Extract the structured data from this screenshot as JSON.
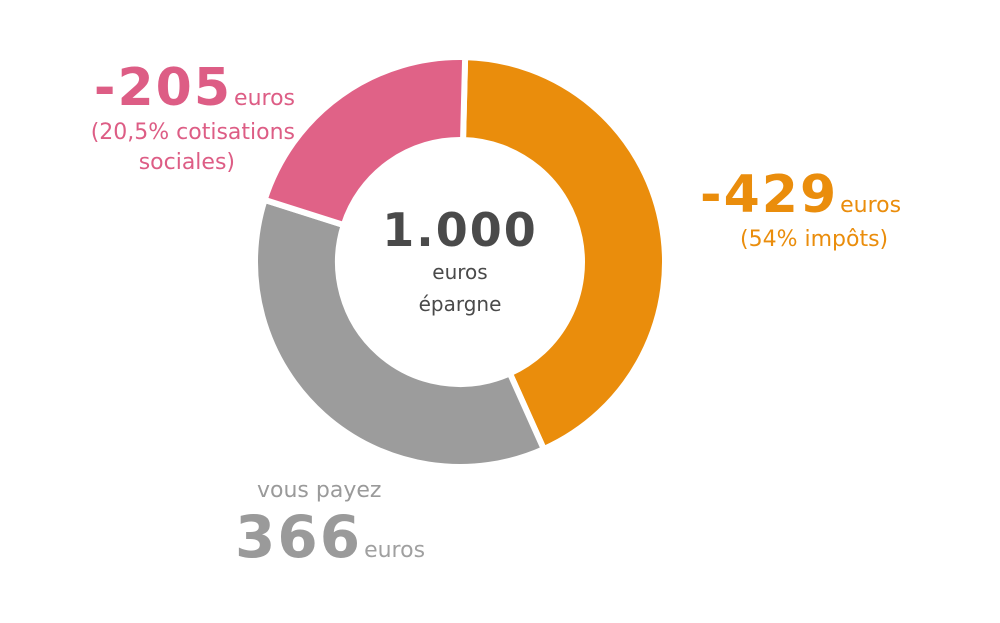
{
  "chart_data": {
    "type": "pie",
    "total": {
      "value": "1.000",
      "line1": "euros",
      "line2": "épargne"
    },
    "slices": [
      {
        "name": "taxes",
        "value": 429,
        "color": "#ea8d0c"
      },
      {
        "name": "you_pay",
        "value": 366,
        "color": "#9c9c9c"
      },
      {
        "name": "social",
        "value": 205,
        "color": "#e06287"
      }
    ]
  },
  "labels": {
    "social": {
      "amount": "-205",
      "unit": "euros",
      "note_line1": "(20,5% cotisations",
      "note_line2": "sociales)"
    },
    "tax": {
      "amount": "-429",
      "unit": "euros",
      "note": "(54% impôts)"
    },
    "pay": {
      "intro": "vous payez",
      "amount": "366",
      "unit": "euros"
    }
  }
}
